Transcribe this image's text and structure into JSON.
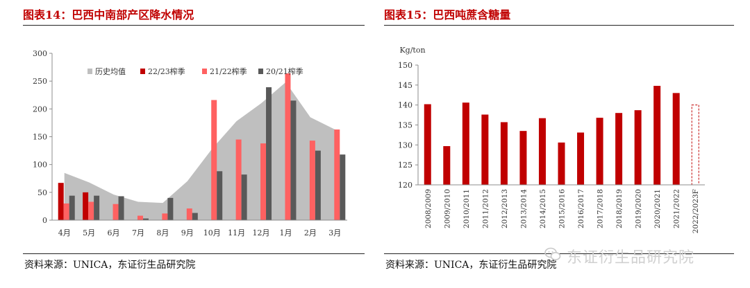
{
  "left": {
    "title": "图表14：巴西中南部产区降水情况",
    "source": "资料来源：UNICA，东证衍生品研究院"
  },
  "right": {
    "title": "图表15：巴西吨蔗含糖量",
    "source": "资料来源：UNICA，东证衍生品研究院"
  },
  "watermark": {
    "text": "东证衍生品研究院",
    "icon": "wechat-icon"
  },
  "chart_data": [
    {
      "type": "bar",
      "categories": [
        "4月",
        "5月",
        "6月",
        "7月",
        "8月",
        "9月",
        "10月",
        "11月",
        "12月",
        "1月",
        "2月",
        "3月"
      ],
      "ylim": [
        0,
        300
      ],
      "yticks": [
        0,
        50,
        100,
        150,
        200,
        250,
        300
      ],
      "grid": false,
      "legend": "top",
      "area_series": {
        "name": "历史均值",
        "color": "#bfbfbf",
        "values": [
          85,
          68,
          46,
          33,
          31,
          70,
          128,
          178,
          210,
          248,
          185,
          163
        ]
      },
      "series": [
        {
          "name": "22/23榨季",
          "color": "#c00000",
          "values": [
            67,
            50,
            null,
            null,
            null,
            null,
            null,
            null,
            null,
            null,
            null,
            null
          ]
        },
        {
          "name": "21/22榨季",
          "color": "#ff6161",
          "values": [
            30,
            33,
            29,
            8,
            12,
            21,
            216,
            145,
            138,
            264,
            143,
            163
          ]
        },
        {
          "name": "20/21榨季",
          "color": "#595959",
          "values": [
            44,
            44,
            43,
            3,
            40,
            13,
            88,
            82,
            239,
            215,
            125,
            118
          ]
        }
      ]
    },
    {
      "type": "bar",
      "categories": [
        "2008/2009",
        "2009/2010",
        "2010/2011",
        "2011/2012",
        "2012/2013",
        "2013/2014",
        "2014/2015",
        "2015/2016",
        "2016/2017",
        "2017/2018",
        "2018/2019",
        "2019/2020",
        "2020/2021",
        "2021/2022",
        "2022/2023F"
      ],
      "values": [
        140.2,
        129.7,
        140.6,
        137.6,
        135.7,
        133.5,
        136.7,
        130.6,
        133.1,
        136.8,
        138.0,
        138.7,
        144.8,
        143.0,
        140.0
      ],
      "forecast_index": 14,
      "ylabel": "Kg/ton",
      "ylim": [
        120,
        150
      ],
      "yticks": [
        120,
        125,
        130,
        135,
        140,
        145,
        150
      ],
      "color": "#c00000",
      "grid": false
    }
  ]
}
